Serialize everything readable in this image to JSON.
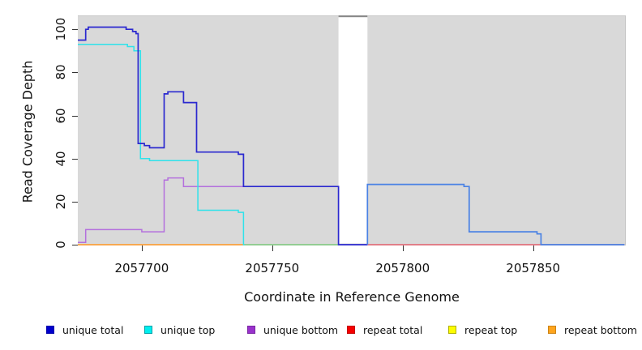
{
  "chart_data": {
    "type": "line",
    "subtype": "step-coverage-plot",
    "xlabel": "Coordinate in Reference Genome",
    "ylabel": "Read Coverage Depth",
    "xlim": [
      2057675.5,
      2057885
    ],
    "ylim": [
      0,
      107
    ],
    "grid": false,
    "plot_background": "#d9d9d9",
    "x_axis": {
      "ticks": [
        {
          "value": 2057700,
          "label": "2057700"
        },
        {
          "value": 2057750,
          "label": "2057750"
        },
        {
          "value": 2057800,
          "label": "2057800"
        },
        {
          "value": 2057850,
          "label": "2057850"
        }
      ]
    },
    "y_axis": {
      "ticks": [
        {
          "value": 0,
          "label": "0"
        },
        {
          "value": 20,
          "label": "20"
        },
        {
          "value": 40,
          "label": "40"
        },
        {
          "value": 60,
          "label": "60"
        },
        {
          "value": 80,
          "label": "80"
        },
        {
          "value": 100,
          "label": "100"
        }
      ]
    },
    "gap_region": {
      "comment": "white no-data band with dark-gray cap at top",
      "x_start": 2057775.4,
      "x_end": 2057786.5,
      "fill": "#ffffff",
      "cap_color": "#8a8a8a"
    },
    "series": [
      {
        "name": "repeat bottom",
        "color": "#ff9824",
        "width": 1.5,
        "end": 2057739,
        "points": [
          [
            2057675.5,
            0
          ]
        ]
      },
      {
        "name": "unique top + repeat bottom overlap",
        "color": "#7cc87c",
        "width": 1.5,
        "end": 2057775.4,
        "points": [
          [
            2057739,
            0
          ]
        ]
      },
      {
        "name": "repeat total",
        "color": "#e2606e",
        "width": 1.5,
        "end": 2057885,
        "points": [
          [
            2057786.5,
            0
          ]
        ]
      },
      {
        "name": "unique bottom",
        "color": "#b470dd",
        "width": 1.5,
        "end": 2057775.4,
        "points": [
          [
            2057675.5,
            1
          ],
          [
            2057678.5,
            7
          ],
          [
            2057700,
            6
          ],
          [
            2057708.6,
            30
          ],
          [
            2057710,
            31
          ],
          [
            2057716,
            27
          ]
        ]
      },
      {
        "name": "unique top",
        "color": "#2fe2ea",
        "width": 1.5,
        "end": 2057739.4,
        "points": [
          [
            2057675.5,
            93
          ],
          [
            2057694.5,
            92
          ],
          [
            2057697,
            90
          ],
          [
            2057699.5,
            40
          ],
          [
            2057703,
            39
          ],
          [
            2057721.5,
            16
          ],
          [
            2057737,
            15
          ],
          [
            2057739,
            0
          ]
        ]
      },
      {
        "name": "unique total",
        "color": "#2b29cf",
        "width": 1.7,
        "end": 2057786.5,
        "points": [
          [
            2057675.5,
            95
          ],
          [
            2057678.5,
            100
          ],
          [
            2057679.5,
            101
          ],
          [
            2057694,
            100
          ],
          [
            2057696.5,
            99
          ],
          [
            2057697.8,
            98
          ],
          [
            2057698.6,
            47
          ],
          [
            2057701,
            46
          ],
          [
            2057703,
            45
          ],
          [
            2057708.6,
            70
          ],
          [
            2057710,
            71
          ],
          [
            2057716,
            66
          ],
          [
            2057721,
            43
          ],
          [
            2057737,
            42
          ],
          [
            2057739,
            27
          ],
          [
            2057775.4,
            0
          ]
        ]
      },
      {
        "name": "unique total (after gap)",
        "color": "#4a82e4",
        "width": 1.7,
        "end": 2057885,
        "points": [
          [
            2057786.5,
            0
          ],
          [
            2057786.5,
            28
          ],
          [
            2057823.5,
            27
          ],
          [
            2057825.5,
            6
          ],
          [
            2057851.5,
            5
          ],
          [
            2057853,
            0
          ]
        ]
      }
    ],
    "legend": [
      {
        "label": "unique total",
        "fill": "#0000cc",
        "border": "#0000aa"
      },
      {
        "label": "unique top",
        "fill": "#00efef",
        "border": "#00a0a8"
      },
      {
        "label": "unique bottom",
        "fill": "#9932cc",
        "border": "#7a28a3"
      },
      {
        "label": "repeat total",
        "fill": "#f50000",
        "border": "#c40000"
      },
      {
        "label": "repeat top",
        "fill": "#fcfc00",
        "border": "#b0b000"
      },
      {
        "label": "repeat bottom",
        "fill": "#ffa51e",
        "border": "#cc8418"
      }
    ],
    "legend_position": "bottom"
  }
}
